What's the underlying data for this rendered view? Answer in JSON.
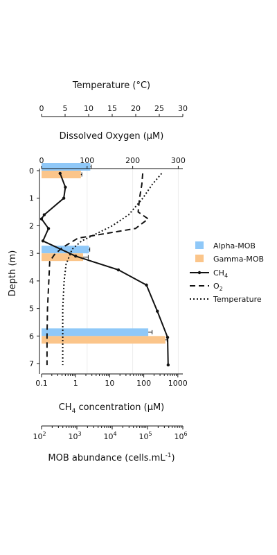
{
  "chart_data": {
    "type": "bar",
    "orientation": "horizontal",
    "axes": {
      "temperature": {
        "label": "Temperature (°C)",
        "range": [
          0,
          30
        ],
        "ticks": [
          "0",
          "5",
          "10",
          "15",
          "20",
          "25",
          "30"
        ]
      },
      "oxygen": {
        "label": "Dissolved Oxygen (µM)",
        "range": [
          0,
          310
        ],
        "ticks": [
          "0",
          "100",
          "200",
          "300"
        ]
      },
      "depth": {
        "label": "Depth (m)",
        "range": [
          0,
          7.3
        ],
        "reversed": true,
        "ticks": [
          "0",
          "1",
          "2",
          "3",
          "4",
          "5",
          "6",
          "7"
        ]
      },
      "ch4": {
        "label_main": "CH",
        "label_sub": "4",
        "label_rest": " concentration (µM)",
        "scale": "log",
        "range": [
          0.1,
          1400
        ],
        "ticks": [
          "0.1",
          "1",
          "10",
          "100",
          "1000"
        ]
      },
      "mob": {
        "label_main": "MOB abundance (cells.mL",
        "label_sup": "-1",
        "label_rest": ")",
        "scale": "log",
        "range": [
          100,
          1000000
        ],
        "ticks": [
          {
            "base": "10",
            "exp": "2"
          },
          {
            "base": "10",
            "exp": "3"
          },
          {
            "base": "10",
            "exp": "4"
          },
          {
            "base": "10",
            "exp": "5"
          },
          {
            "base": "10",
            "exp": "6"
          }
        ]
      }
    },
    "bars": {
      "depths": [
        0,
        3,
        6
      ],
      "series": [
        {
          "name": "Alpha-MOB",
          "color": "#8fc8f8",
          "values": [
            2400,
            2200,
            105000
          ],
          "errors": [
            150,
            120,
            30000
          ]
        },
        {
          "name": "Gamma-MOB",
          "color": "#fbc58a",
          "values": [
            1300,
            1500,
            320000
          ],
          "errors": [
            80,
            600,
            40000
          ]
        }
      ]
    },
    "lines": [
      {
        "name": "CH4",
        "name_main": "CH",
        "name_sub": "4",
        "axis": "ch4",
        "style": "solid",
        "markers": true,
        "points": [
          [
            0.35,
            0.1
          ],
          [
            0.5,
            0.6
          ],
          [
            0.45,
            1.0
          ],
          [
            0.12,
            1.6
          ],
          [
            0.1,
            1.75
          ],
          [
            0.16,
            2.1
          ],
          [
            0.11,
            2.55
          ],
          [
            1.0,
            3.1
          ],
          [
            18,
            3.6
          ],
          [
            120,
            4.15
          ],
          [
            250,
            5.1
          ],
          [
            500,
            6.05
          ],
          [
            520,
            7.05
          ]
        ]
      },
      {
        "name": "O2",
        "name_main": "O",
        "name_sub": "2",
        "axis": "oxygen",
        "style": "dashed",
        "markers": false,
        "points": [
          [
            222,
            0.1
          ],
          [
            220,
            0.5
          ],
          [
            215,
            1.0
          ],
          [
            212,
            1.5
          ],
          [
            234,
            1.75
          ],
          [
            206,
            2.1
          ],
          [
            80,
            2.45
          ],
          [
            45,
            2.8
          ],
          [
            28,
            3.05
          ],
          [
            18,
            3.3
          ],
          [
            16,
            4
          ],
          [
            13,
            5
          ],
          [
            12,
            6
          ],
          [
            12,
            7.05
          ]
        ]
      },
      {
        "name": "Temperature",
        "axis": "temperature",
        "style": "dotted",
        "markers": false,
        "points": [
          [
            25.5,
            0.1
          ],
          [
            23.5,
            0.5
          ],
          [
            21.5,
            1.0
          ],
          [
            18.5,
            1.6
          ],
          [
            15,
            2.0
          ],
          [
            11.5,
            2.3
          ],
          [
            8.5,
            2.55
          ],
          [
            6.5,
            2.85
          ],
          [
            5.2,
            3.4
          ],
          [
            4.8,
            4
          ],
          [
            4.5,
            5
          ],
          [
            4.5,
            6
          ],
          [
            4.5,
            7.05
          ]
        ]
      }
    ],
    "legend": {
      "position": "right"
    }
  }
}
